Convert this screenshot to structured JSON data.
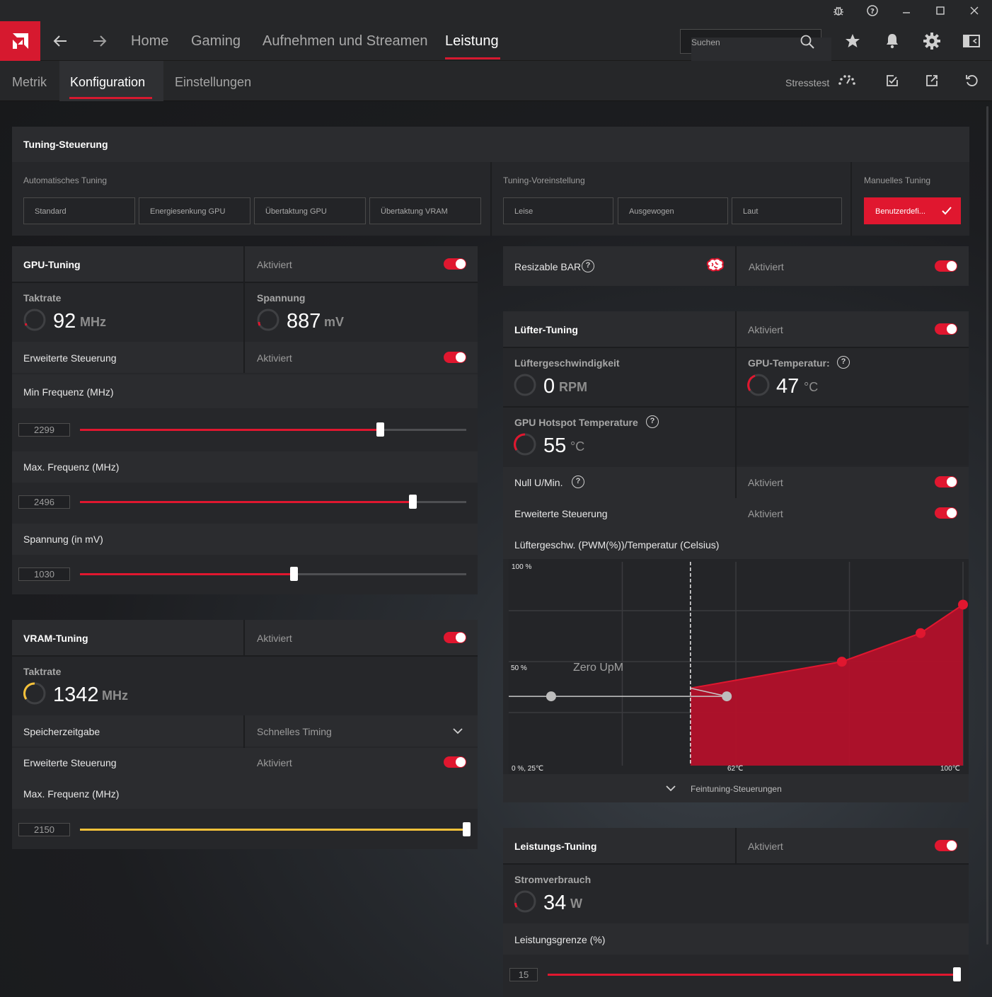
{
  "titlebar": {
    "icons": [
      "bug-icon",
      "help-icon",
      "minimize-icon",
      "maximize-icon",
      "close-icon"
    ]
  },
  "nav": {
    "tabs": [
      {
        "label": "Home"
      },
      {
        "label": "Gaming"
      },
      {
        "label": "Aufnehmen und Streamen"
      },
      {
        "label": "Leistung"
      }
    ],
    "active": "Leistung",
    "search_placeholder": "Suchen"
  },
  "subnav": {
    "tabs": [
      {
        "label": "Metrik"
      },
      {
        "label": "Konfiguration"
      },
      {
        "label": "Einstellungen"
      }
    ],
    "active": "Konfiguration",
    "stresstest_label": "Stresstest"
  },
  "colors": {
    "accent": "#e0172f",
    "vram_accent": "#f5c13a",
    "panel": "#26272a"
  },
  "tuning": {
    "title": "Tuning-Steuerung",
    "auto_label": "Automatisches Tuning",
    "auto_buttons": [
      "Standard",
      "Energiesenkung GPU",
      "Übertaktung GPU",
      "Übertaktung VRAM"
    ],
    "preset_label": "Tuning-Voreinstellung",
    "preset_buttons": [
      "Leise",
      "Ausgewogen",
      "Laut"
    ],
    "manual_label": "Manuelles Tuning",
    "manual_button": "Benutzerdefi..."
  },
  "gpu": {
    "title": "GPU-Tuning",
    "status": "Aktiviert",
    "enabled": true,
    "clock_label": "Taktrate",
    "clock_value": "92",
    "clock_unit": "MHz",
    "voltage_label": "Spannung",
    "voltage_value": "887",
    "voltage_unit": "mV",
    "advanced_label": "Erweiterte Steuerung",
    "advanced_status": "Aktiviert",
    "sliders": [
      {
        "label": "Min Frequenz (MHz)",
        "value": "2299",
        "fraction": 0.777
      },
      {
        "label": "Max. Frequenz (MHz)",
        "value": "2496",
        "fraction": 0.861
      },
      {
        "label": "Spannung (in mV)",
        "value": "1030",
        "fraction": 0.553
      }
    ]
  },
  "vram": {
    "title": "VRAM-Tuning",
    "status": "Aktiviert",
    "clock_label": "Taktrate",
    "clock_value": "1342",
    "clock_unit": "MHz",
    "timing_label": "Speicherzeitgabe",
    "timing_value": "Schnelles Timing",
    "advanced_label": "Erweiterte Steuerung",
    "advanced_status": "Aktiviert",
    "max_label": "Max. Frequenz (MHz)",
    "max_value": "2150",
    "max_fraction": 1.0
  },
  "rebar": {
    "label": "Resizable BAR",
    "status": "Aktiviert"
  },
  "fan": {
    "title": "Lüfter-Tuning",
    "status": "Aktiviert",
    "speed_label": "Lüftergeschwindigkeit",
    "speed_value": "0",
    "speed_unit": "RPM",
    "temp_label": "GPU-Temperatur:",
    "temp_value": "47",
    "temp_unit": "°C",
    "hotspot_label": "GPU Hotspot Temperature",
    "hotspot_value": "55",
    "hotspot_unit": "°C",
    "zero_label": "Null U/Min.",
    "zero_status": "Aktiviert",
    "advanced_label": "Erweiterte Steuerung",
    "advanced_status": "Aktiviert",
    "curve_label": "Lüftergeschw. (PWM(%))/Temperatur (Celsius)",
    "fine_label": "Feintuning-Steuerungen"
  },
  "chart_data": {
    "type": "area",
    "title": "Lüftergeschw. (PWM(%))/Temperatur (Celsius)",
    "y_tick_labels": [
      "100 %",
      "50 %",
      "0 %, 25℃"
    ],
    "x_tick_labels": [
      "62℃",
      "100℃"
    ],
    "annotation": "Zero UpM",
    "xlim": [
      25,
      100
    ],
    "ylim": [
      0,
      100
    ],
    "zero_rpm_threshold_x": 55,
    "inactive_points": [
      {
        "x": 32,
        "y": 34
      },
      {
        "x": 61,
        "y": 34
      }
    ],
    "active_points": [
      {
        "x": 55,
        "y": 38
      },
      {
        "x": 80,
        "y": 51
      },
      {
        "x": 93,
        "y": 65
      },
      {
        "x": 100,
        "y": 79
      }
    ]
  },
  "power": {
    "title": "Leistungs-Tuning",
    "status": "Aktiviert",
    "consumption_label": "Stromverbrauch",
    "consumption_value": "34",
    "consumption_unit": "W",
    "limit_label": "Leistungsgrenze (%)",
    "limit_value": "15",
    "limit_fraction": 1.0
  }
}
